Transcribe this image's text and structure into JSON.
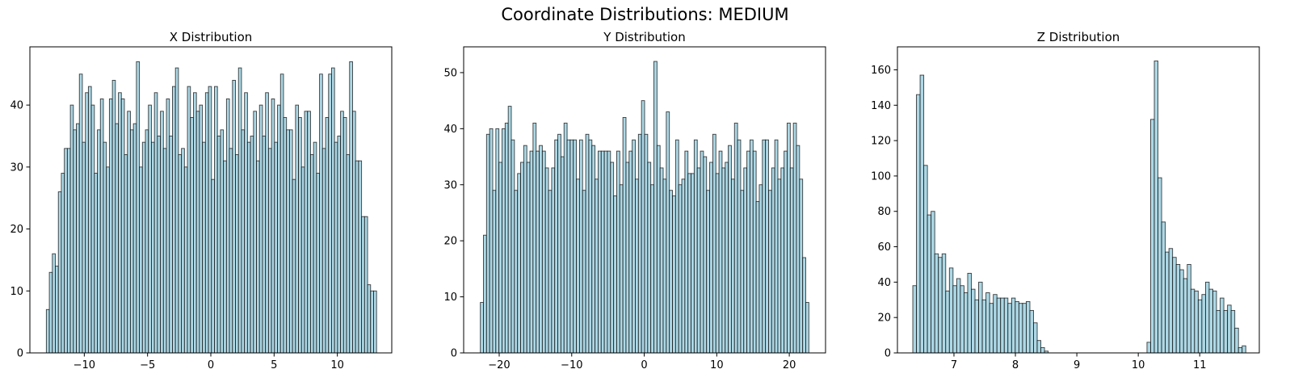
{
  "suptitle": "Coordinate Distributions: MEDIUM",
  "colors": {
    "bar_fill": "#add8e6",
    "bar_edge": "#000000"
  },
  "chart_data": [
    {
      "type": "bar",
      "title": "X Distribution",
      "xlabel": "",
      "ylabel": "",
      "grid": false,
      "x_range": [
        -13.0,
        13.1
      ],
      "xlim": [
        -14.3,
        14.3
      ],
      "ylim": [
        0,
        49.4
      ],
      "xticks": [
        -10,
        -5,
        0,
        5,
        10
      ],
      "xtick_labels": [
        "−10",
        "−5",
        "0",
        "5",
        "10"
      ],
      "yticks": [
        0,
        10,
        20,
        30,
        40
      ],
      "yticks_labels": [
        "0",
        "10",
        "20",
        "30",
        "40"
      ],
      "values": [
        7,
        13,
        16,
        14,
        26,
        29,
        33,
        33,
        40,
        36,
        37,
        45,
        34,
        42,
        43,
        40,
        29,
        36,
        41,
        34,
        30,
        41,
        44,
        37,
        42,
        41,
        32,
        39,
        36,
        37,
        47,
        30,
        34,
        36,
        40,
        34,
        42,
        35,
        39,
        33,
        41,
        35,
        43,
        46,
        32,
        33,
        30,
        43,
        38,
        42,
        39,
        40,
        34,
        42,
        43,
        28,
        43,
        35,
        36,
        31,
        41,
        33,
        44,
        32,
        46,
        36,
        42,
        34,
        35,
        39,
        31,
        40,
        35,
        42,
        33,
        41,
        34,
        40,
        45,
        38,
        36,
        36,
        28,
        40,
        38,
        30,
        39,
        39,
        32,
        34,
        29,
        45,
        33,
        38,
        45,
        46,
        34,
        35,
        39,
        38,
        32,
        47,
        39,
        31,
        31,
        22,
        22,
        11,
        10,
        10
      ]
    },
    {
      "type": "bar",
      "title": "Y Distribution",
      "xlabel": "",
      "ylabel": "",
      "grid": false,
      "x_range": [
        -22.6,
        22.7
      ],
      "xlim": [
        -24.9,
        25.0
      ],
      "ylim": [
        0,
        54.6
      ],
      "xticks": [
        -20,
        -10,
        0,
        10,
        20
      ],
      "xtick_labels": [
        "−20",
        "−10",
        "0",
        "10",
        "20"
      ],
      "yticks": [
        0,
        10,
        20,
        30,
        40,
        50
      ],
      "yticks_labels": [
        "0",
        "10",
        "20",
        "30",
        "40",
        "50"
      ],
      "values": [
        9,
        21,
        39,
        40,
        29,
        40,
        34,
        40,
        41,
        44,
        38,
        29,
        32,
        34,
        37,
        34,
        36,
        41,
        36,
        37,
        36,
        33,
        29,
        33,
        38,
        39,
        35,
        41,
        38,
        38,
        38,
        31,
        38,
        29,
        39,
        38,
        37,
        31,
        36,
        36,
        36,
        36,
        34,
        28,
        36,
        30,
        42,
        34,
        36,
        38,
        31,
        39,
        45,
        39,
        34,
        30,
        52,
        37,
        33,
        31,
        43,
        29,
        28,
        38,
        30,
        31,
        36,
        32,
        32,
        38,
        33,
        36,
        35,
        29,
        34,
        39,
        32,
        36,
        33,
        34,
        37,
        31,
        41,
        38,
        29,
        33,
        36,
        38,
        36,
        27,
        30,
        38,
        38,
        29,
        33,
        38,
        31,
        33,
        36,
        41,
        33,
        41,
        37,
        31,
        17,
        9
      ]
    },
    {
      "type": "bar",
      "title": "Z Distribution",
      "xlabel": "",
      "ylabel": "",
      "grid": false,
      "x_range": [
        6.33,
        11.75
      ],
      "xlim": [
        6.08,
        11.97
      ],
      "ylim": [
        0,
        173
      ],
      "xticks": [
        7,
        8,
        9,
        10,
        11
      ],
      "xtick_labels": [
        "7",
        "8",
        "9",
        "10",
        "11"
      ],
      "yticks": [
        0,
        20,
        40,
        60,
        80,
        100,
        120,
        140,
        160
      ],
      "yticks_labels": [
        "0",
        "20",
        "40",
        "60",
        "80",
        "100",
        "120",
        "140",
        "160"
      ],
      "values": [
        38,
        146,
        157,
        106,
        78,
        80,
        56,
        54,
        56,
        35,
        48,
        38,
        42,
        38,
        34,
        45,
        36,
        30,
        40,
        30,
        34,
        28,
        33,
        31,
        31,
        31,
        28,
        31,
        29,
        28,
        28,
        29,
        24,
        17,
        7,
        3,
        1,
        0,
        0,
        0,
        0,
        0,
        0,
        0,
        0,
        0,
        0,
        0,
        0,
        0,
        0,
        0,
        0,
        0,
        0,
        0,
        0,
        0,
        0,
        0,
        0,
        0,
        0,
        0,
        6,
        132,
        165,
        99,
        74,
        57,
        59,
        54,
        50,
        47,
        42,
        50,
        36,
        35,
        30,
        33,
        40,
        36,
        35,
        24,
        31,
        24,
        27,
        24,
        14,
        3,
        4
      ]
    }
  ]
}
